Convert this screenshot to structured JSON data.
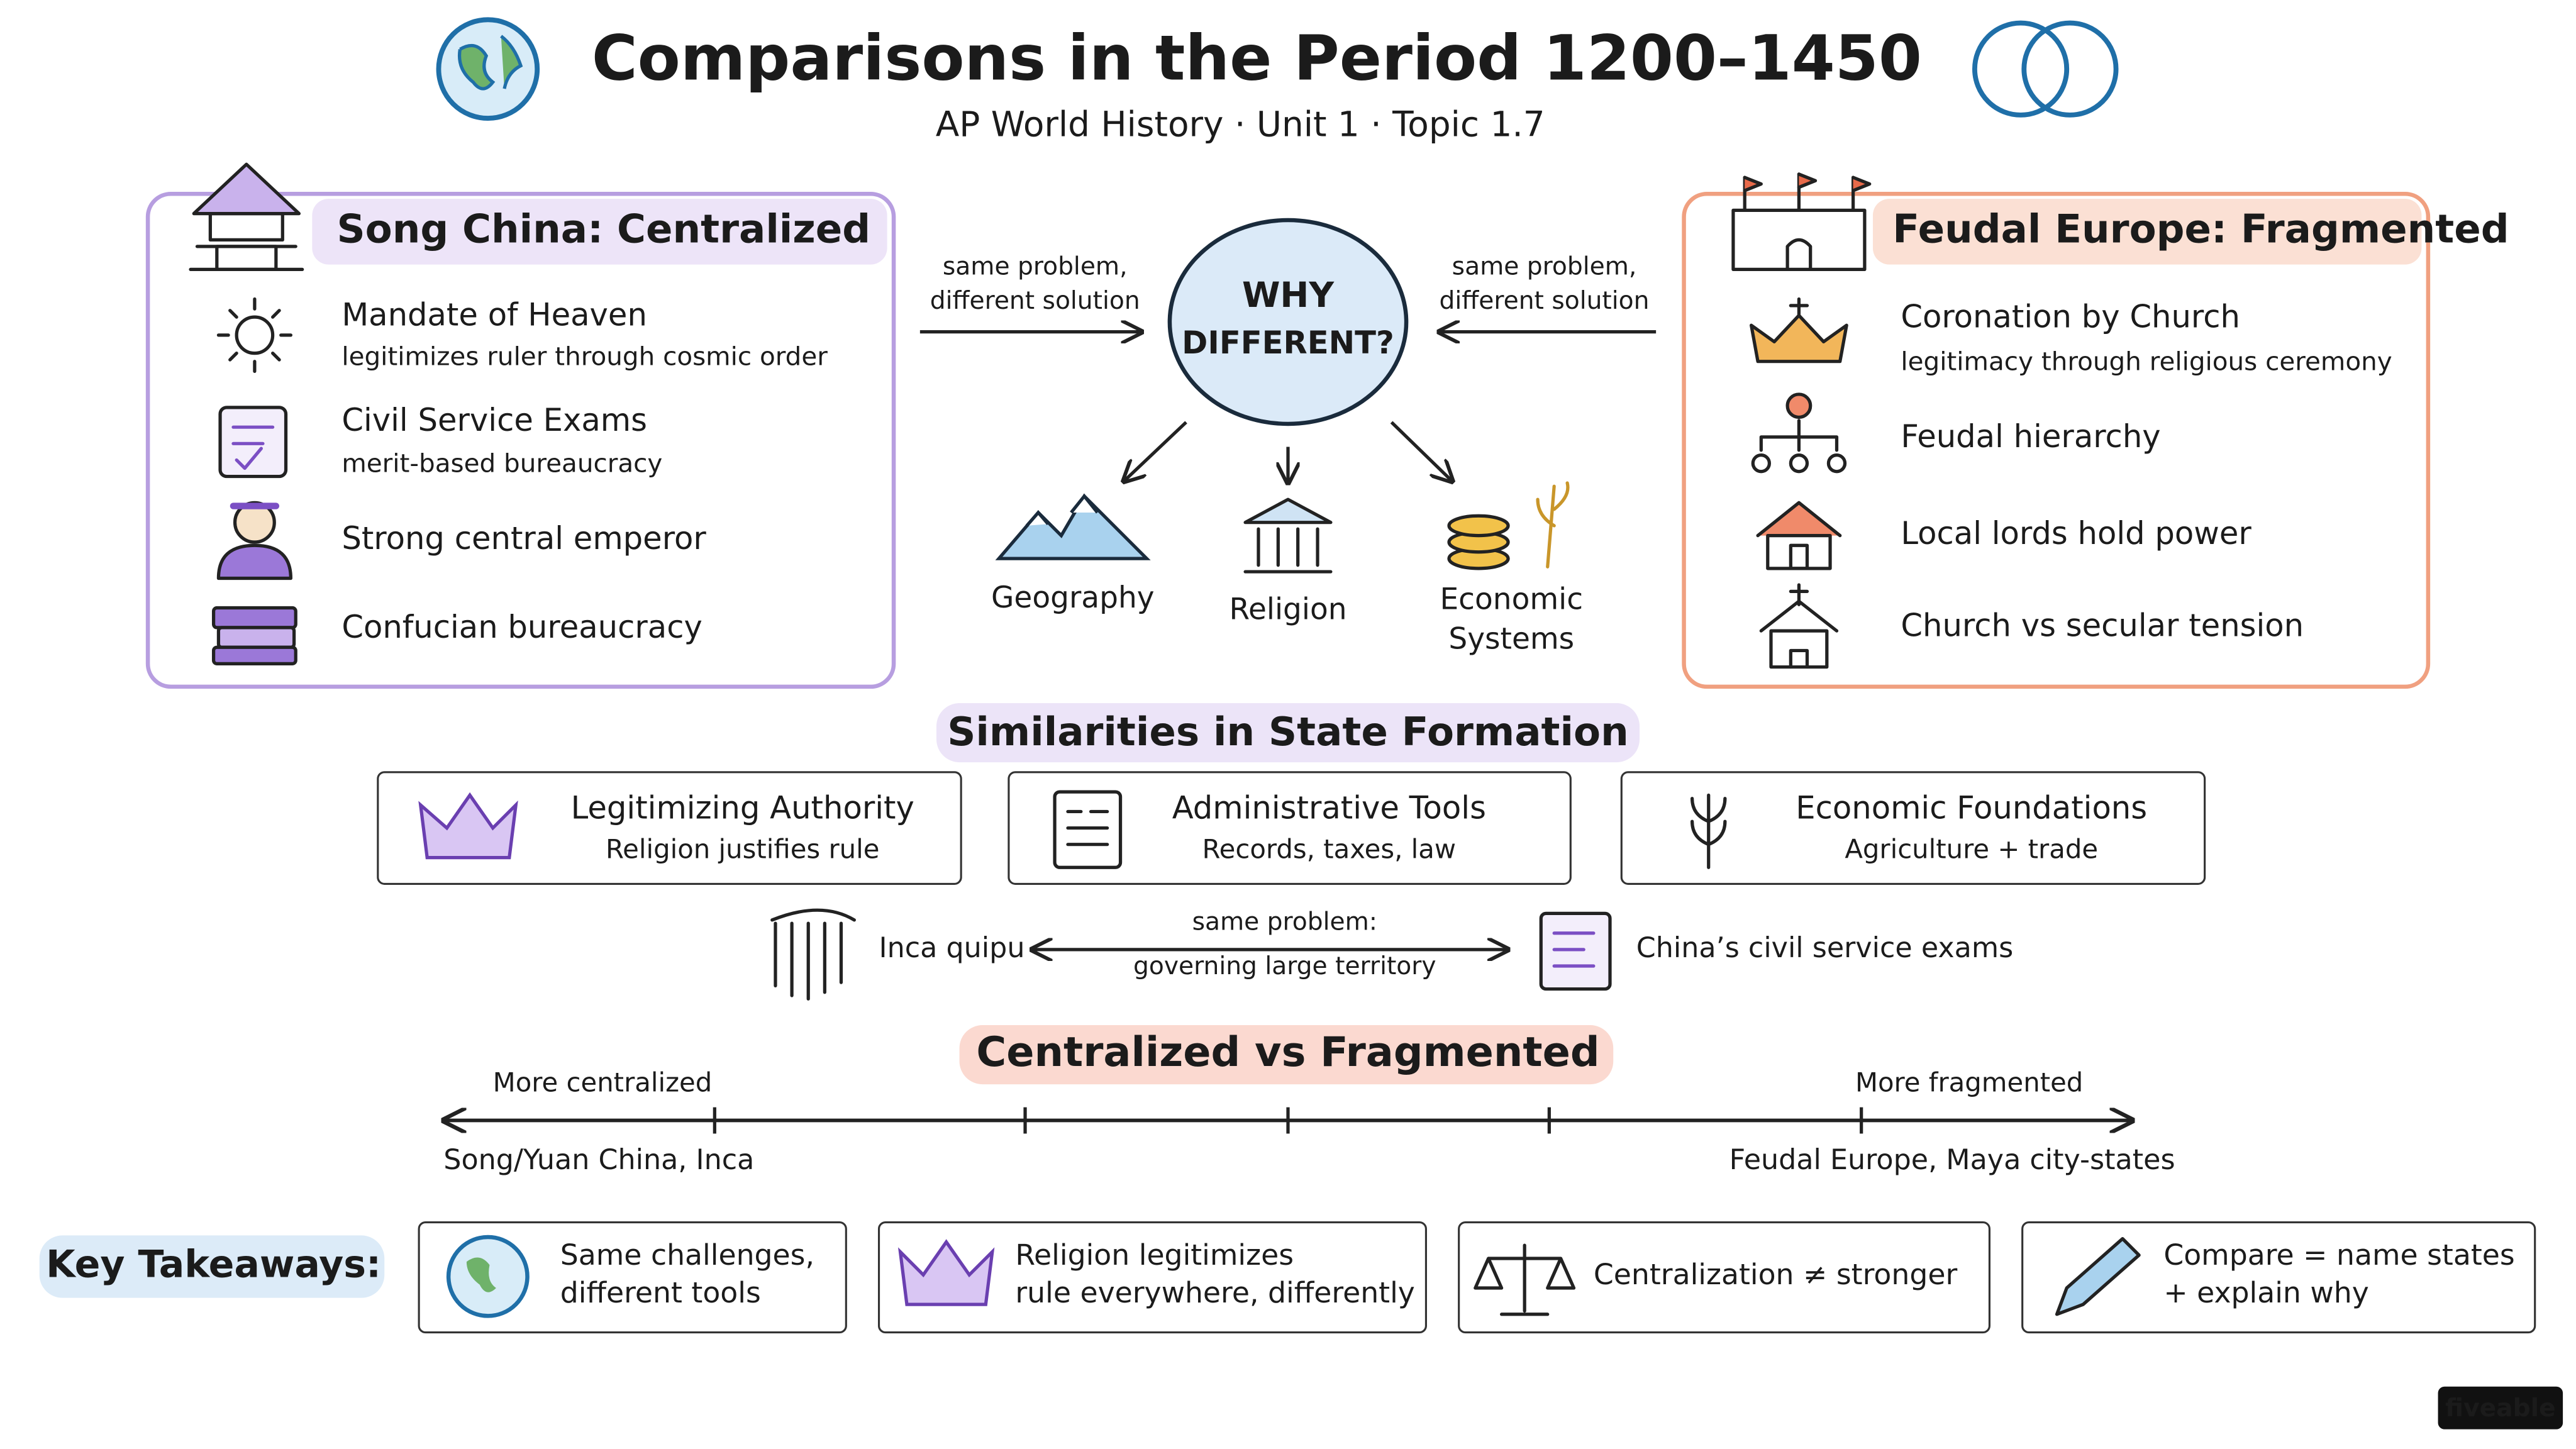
{
  "header": {
    "title": "Comparisons in the Period 1200–1450",
    "subtitle": "AP World History · Unit 1 · Topic 1.7"
  },
  "left_panel": {
    "title": "Song China: Centralized",
    "items": [
      {
        "title": "Mandate of Heaven",
        "desc": "legitimizes ruler through cosmic order"
      },
      {
        "title": "Civil Service Exams",
        "desc": "merit-based bureaucracy"
      },
      {
        "title": "Strong central emperor"
      },
      {
        "title": "Confucian bureaucracy"
      }
    ]
  },
  "center": {
    "question": [
      "WHY",
      "DIFFERENT?"
    ],
    "left_note": [
      "same problem,",
      "different solution"
    ],
    "right_note": [
      "same problem,",
      "different solution"
    ],
    "factors": [
      [
        "Geography"
      ],
      [
        "Religion"
      ],
      [
        "Economic",
        "Systems"
      ]
    ]
  },
  "right_panel": {
    "title": "Feudal Europe: Fragmented",
    "items": [
      {
        "title": "Coronation by Church",
        "desc": "legitimacy through religious ceremony"
      },
      {
        "title": "Feudal hierarchy"
      },
      {
        "title": "Local lords hold power"
      },
      {
        "title": "Church vs secular tension"
      }
    ]
  },
  "similarities": {
    "title": "Similarities in State Formation",
    "cards": [
      {
        "title": "Legitimizing Authority",
        "desc": "Religion justifies rule"
      },
      {
        "title": "Administrative Tools",
        "desc": "Records, taxes, law"
      },
      {
        "title": "Economic Foundations",
        "desc": "Agriculture + trade"
      }
    ]
  },
  "comparison": {
    "left": "Inca quipu",
    "middle": [
      "same problem:",
      "governing large territory"
    ],
    "right": "China’s civil service exams"
  },
  "spectrum": {
    "title": "Centralized vs Fragmented",
    "left_label": "More centralized",
    "right_label": "More fragmented",
    "left_example": "Song/Yuan China, Inca",
    "right_example": "Feudal Europe, Maya city-states"
  },
  "takeaways": {
    "label": "Key Takeaways:",
    "items": [
      [
        "Same challenges,",
        "different tools"
      ],
      [
        "Religion legitimizes",
        "rule everywhere, differently"
      ],
      [
        "Centralization ≠ stronger"
      ],
      [
        "Compare = name states",
        "+ explain why"
      ]
    ]
  },
  "brand": "fiveable"
}
